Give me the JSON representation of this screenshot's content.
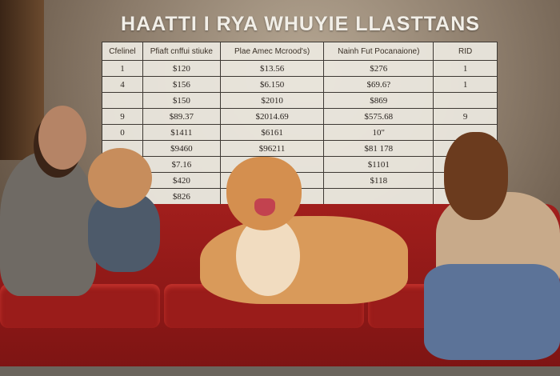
{
  "title": "HAATTI I RYA WHUYIE LLASTTANS",
  "table": {
    "headers": [
      "Cfelinel",
      "Pfiaft cnffui stiuke",
      "Plae Amec Mcrood's)",
      "Nainh Fut Pocanaione)",
      "RID"
    ],
    "rows": [
      [
        "1",
        "$120",
        "$13.56",
        "$276",
        "1"
      ],
      [
        "4",
        "$156",
        "$6.150",
        "$69.6?",
        "1"
      ],
      [
        "",
        "$150",
        "$2010",
        "$869",
        ""
      ],
      [
        "9",
        "$89.37",
        "$2014.69",
        "$575.68",
        "9"
      ],
      [
        "0",
        "$1411",
        "$6161",
        "10\"",
        ""
      ],
      [
        "",
        "$9460",
        "$96211",
        "$81 178",
        ""
      ],
      [
        "",
        "$7.16",
        "",
        "$1101",
        ""
      ],
      [
        "",
        "$420",
        "",
        "$118",
        ""
      ],
      [
        "",
        "$826",
        "",
        "",
        ""
      ]
    ]
  },
  "colors": {
    "couch": "#9a1c1a",
    "dog": "#d99a5a",
    "wall": "#8a7a69"
  }
}
